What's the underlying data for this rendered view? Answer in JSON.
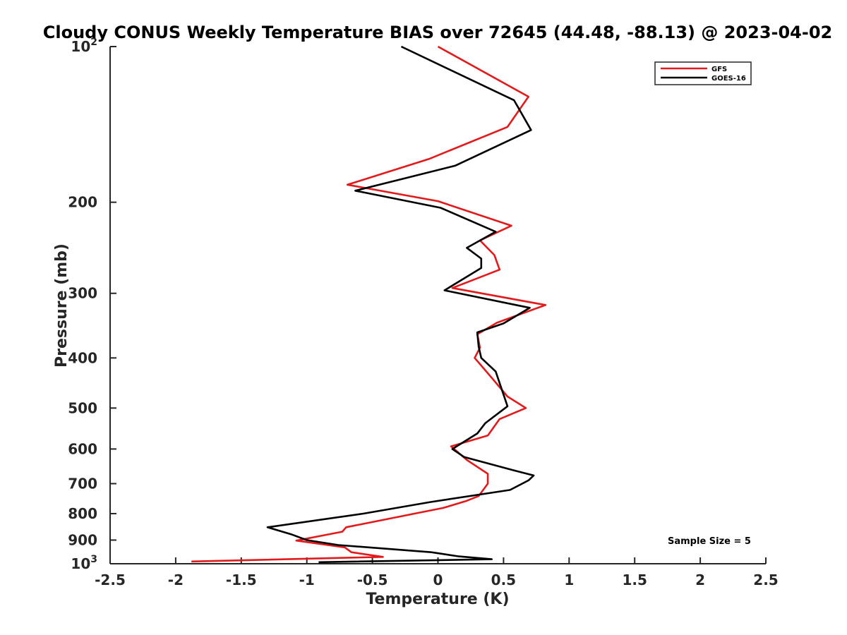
{
  "chart_data": {
    "type": "line",
    "title": "Cloudy CONUS Weekly Temperature BIAS over 72645 (44.48, -88.13) @ 2023-04-02",
    "xlabel": "Temperature (K)",
    "ylabel": "Pressure (mb)",
    "xlim": [
      -2.5,
      2.5
    ],
    "ylim": [
      100,
      1000
    ],
    "y_scale": "log",
    "y_reversed": true,
    "grid": false,
    "legend_position": "top-right",
    "x_ticks": [
      "-2.5",
      "-2",
      "-1.5",
      "-1",
      "-0.5",
      "0",
      "0.5",
      "1",
      "1.5",
      "2",
      "2.5"
    ],
    "y_ticks": [
      {
        "value": 100,
        "base": "10",
        "exp": "2",
        "label": ""
      },
      {
        "value": 200,
        "label": "200"
      },
      {
        "value": 300,
        "label": "300"
      },
      {
        "value": 400,
        "label": "400"
      },
      {
        "value": 500,
        "label": "500"
      },
      {
        "value": 600,
        "label": "600"
      },
      {
        "value": 700,
        "label": "700"
      },
      {
        "value": 800,
        "label": "800"
      },
      {
        "value": 900,
        "label": "900"
      },
      {
        "value": 1000,
        "base": "10",
        "exp": "3",
        "label": ""
      }
    ],
    "annotation": "Sample Size = 5",
    "series": [
      {
        "name": "GFS",
        "color": "#e31a1c",
        "points": [
          [
            0.0,
            100
          ],
          [
            0.69,
            125
          ],
          [
            0.53,
            143
          ],
          [
            -0.07,
            165
          ],
          [
            -0.69,
            185
          ],
          [
            0.0,
            199
          ],
          [
            0.56,
            222
          ],
          [
            0.32,
            237
          ],
          [
            0.43,
            253
          ],
          [
            0.47,
            270
          ],
          [
            0.11,
            293
          ],
          [
            0.82,
            316
          ],
          [
            0.45,
            342
          ],
          [
            0.3,
            360
          ],
          [
            0.32,
            382
          ],
          [
            0.28,
            400
          ],
          [
            0.41,
            437
          ],
          [
            0.53,
            475
          ],
          [
            0.67,
            500
          ],
          [
            0.47,
            525
          ],
          [
            0.38,
            565
          ],
          [
            0.1,
            593
          ],
          [
            0.22,
            630
          ],
          [
            0.38,
            670
          ],
          [
            0.38,
            700
          ],
          [
            0.31,
            740
          ],
          [
            0.21,
            757
          ],
          [
            0.04,
            780
          ],
          [
            -0.18,
            800
          ],
          [
            -0.7,
            850
          ],
          [
            -0.73,
            867
          ],
          [
            -1.08,
            902
          ],
          [
            -0.71,
            930
          ],
          [
            -0.66,
            950
          ],
          [
            -0.42,
            970
          ],
          [
            -1.88,
            990
          ]
        ]
      },
      {
        "name": "GOES-16",
        "color": "#000000",
        "points": [
          [
            -0.28,
            100
          ],
          [
            0.58,
            127
          ],
          [
            0.71,
            145
          ],
          [
            0.13,
            170
          ],
          [
            -0.63,
            190
          ],
          [
            0.02,
            205
          ],
          [
            0.44,
            228
          ],
          [
            0.22,
            245
          ],
          [
            0.33,
            257
          ],
          [
            0.33,
            268
          ],
          [
            0.05,
            296
          ],
          [
            0.7,
            320
          ],
          [
            0.5,
            343
          ],
          [
            0.3,
            357
          ],
          [
            0.31,
            380
          ],
          [
            0.33,
            400
          ],
          [
            0.44,
            425
          ],
          [
            0.53,
            496
          ],
          [
            0.36,
            535
          ],
          [
            0.3,
            560
          ],
          [
            0.11,
            600
          ],
          [
            0.2,
            622
          ],
          [
            0.58,
            660
          ],
          [
            0.73,
            675
          ],
          [
            0.69,
            690
          ],
          [
            0.55,
            720
          ],
          [
            -0.06,
            760
          ],
          [
            -0.57,
            800
          ],
          [
            -1.3,
            850
          ],
          [
            -1.12,
            877
          ],
          [
            -1.0,
            900
          ],
          [
            -0.76,
            920
          ],
          [
            -0.05,
            950
          ],
          [
            0.16,
            968
          ],
          [
            0.41,
            980
          ],
          [
            -0.91,
            993
          ]
        ]
      }
    ]
  }
}
